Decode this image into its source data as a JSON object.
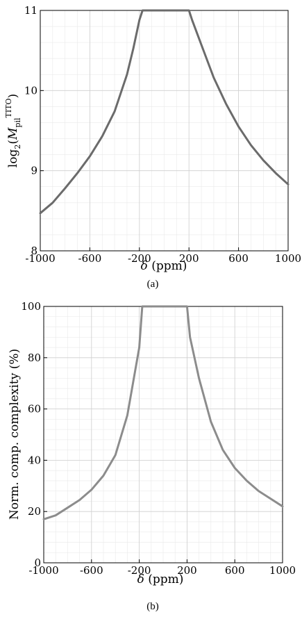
{
  "chart_data": [
    {
      "type": "line",
      "caption": "(a)",
      "xlabel": "δ (ppm)",
      "ylabel_main": "log",
      "ylabel_sub": "2",
      "ylabel_symbol": "M",
      "ylabel_symbol_sub": "pil",
      "ylabel_symbol_sup": "TITO",
      "xlim": [
        -1000,
        1000
      ],
      "ylim": [
        8,
        11
      ],
      "xticks": [
        -1000,
        -600,
        -200,
        200,
        600,
        1000
      ],
      "xtick_labels": [
        "-1000",
        "-600",
        "-200",
        "200",
        "600",
        "1000"
      ],
      "yticks": [
        8,
        9,
        10,
        11
      ],
      "ytick_labels": [
        "8",
        "9",
        "10",
        "11"
      ],
      "grid": true,
      "series": [
        {
          "color": "#6b6b6b",
          "x": [
            -1000,
            -900,
            -800,
            -700,
            -600,
            -500,
            -400,
            -300,
            -250,
            -200,
            -175,
            200,
            225,
            300,
            400,
            500,
            600,
            700,
            800,
            900,
            1000
          ],
          "y": [
            8.47,
            8.6,
            8.78,
            8.97,
            9.18,
            9.43,
            9.74,
            10.2,
            10.52,
            10.88,
            11.0,
            11.0,
            10.88,
            10.57,
            10.16,
            9.83,
            9.55,
            9.32,
            9.13,
            8.97,
            8.83
          ]
        }
      ]
    },
    {
      "type": "line",
      "caption": "(b)",
      "xlabel": "δ (ppm)",
      "ylabel": "Norm. comp. complexity (%)",
      "xlim": [
        -1000,
        1000
      ],
      "ylim": [
        0,
        100
      ],
      "xticks": [
        -1000,
        -600,
        -200,
        200,
        600,
        1000
      ],
      "xtick_labels": [
        "-1000",
        "-600",
        "-200",
        "200",
        "600",
        "1000"
      ],
      "yticks": [
        0,
        20,
        40,
        60,
        80,
        100
      ],
      "ytick_labels": [
        "0",
        "20",
        "40",
        "60",
        "80",
        "100"
      ],
      "grid": true,
      "series": [
        {
          "color": "#8c8c8c",
          "x": [
            -1000,
            -900,
            -800,
            -700,
            -600,
            -500,
            -400,
            -300,
            -200,
            -175,
            200,
            225,
            300,
            400,
            500,
            600,
            700,
            800,
            900,
            1000
          ],
          "y": [
            17,
            18.5,
            21.5,
            24.5,
            28.5,
            34,
            42,
            57.5,
            84,
            100,
            100,
            88,
            72,
            55,
            44,
            37,
            32,
            28,
            25,
            22
          ]
        }
      ]
    }
  ]
}
